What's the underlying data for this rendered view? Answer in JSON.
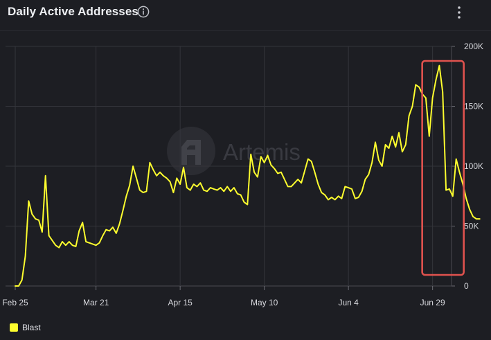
{
  "header": {
    "title": "Daily Active Addresses"
  },
  "watermark": {
    "text": "Artemis"
  },
  "colors": {
    "background": "#1d1e23",
    "series": "#fefe2e",
    "highlight_box": "#e0524e",
    "grid": "#34353b"
  },
  "icons": {
    "info": "info-circle-icon",
    "menu": "kebab-menu-icon",
    "watermark": "artemis-logo-icon"
  },
  "chart_data": {
    "type": "line",
    "title": "Daily Active Addresses",
    "xlabel": "",
    "ylabel": "",
    "x_start": "Feb 25",
    "x_ticks": [
      "Feb 25",
      "Mar 21",
      "Apr 15",
      "May 10",
      "Jun 4",
      "Jun 29"
    ],
    "y_ticks": [
      "0",
      "50K",
      "100K",
      "150K",
      "200K"
    ],
    "ylim": [
      0,
      200000
    ],
    "y_axis_side": "right",
    "grid": true,
    "legend_position": "bottom-left",
    "highlight": {
      "from": "Jun 24",
      "to": "Jul 5",
      "style": "red outlined box"
    },
    "series": [
      {
        "name": "Blast",
        "values": [
          0,
          0,
          5000,
          25000,
          71000,
          60000,
          56000,
          55000,
          45000,
          92000,
          42000,
          38000,
          34000,
          32000,
          37000,
          34000,
          37000,
          34000,
          33000,
          46000,
          53000,
          37000,
          36000,
          35000,
          34000,
          36000,
          42000,
          47000,
          46000,
          49000,
          44000,
          52000,
          63000,
          75000,
          84000,
          100000,
          90000,
          80000,
          78000,
          79000,
          103000,
          97000,
          92000,
          95000,
          92000,
          90000,
          87000,
          78000,
          90000,
          85000,
          99000,
          82000,
          80000,
          85000,
          83000,
          86000,
          80000,
          79000,
          82000,
          81000,
          80000,
          82000,
          79000,
          83000,
          79000,
          82000,
          77000,
          76000,
          70000,
          68000,
          110000,
          95000,
          91000,
          108000,
          103000,
          109000,
          101000,
          98000,
          94000,
          95000,
          89000,
          83000,
          83000,
          86000,
          89000,
          86000,
          96000,
          106000,
          104000,
          95000,
          85000,
          78000,
          76000,
          72000,
          74000,
          72000,
          75000,
          73000,
          83000,
          82000,
          81000,
          73000,
          74000,
          79000,
          89000,
          93000,
          103000,
          120000,
          105000,
          100000,
          118000,
          115000,
          125000,
          116000,
          128000,
          112000,
          118000,
          142000,
          150000,
          168000,
          166000,
          160000,
          157000,
          125000,
          157000,
          172000,
          184000,
          162000,
          80000,
          81000,
          75000,
          106000,
          95000,
          85000,
          73000,
          64000,
          58000,
          56000,
          56000
        ]
      }
    ]
  },
  "legend": {
    "items": [
      {
        "label": "Blast",
        "color": "#fefe2e"
      }
    ]
  }
}
